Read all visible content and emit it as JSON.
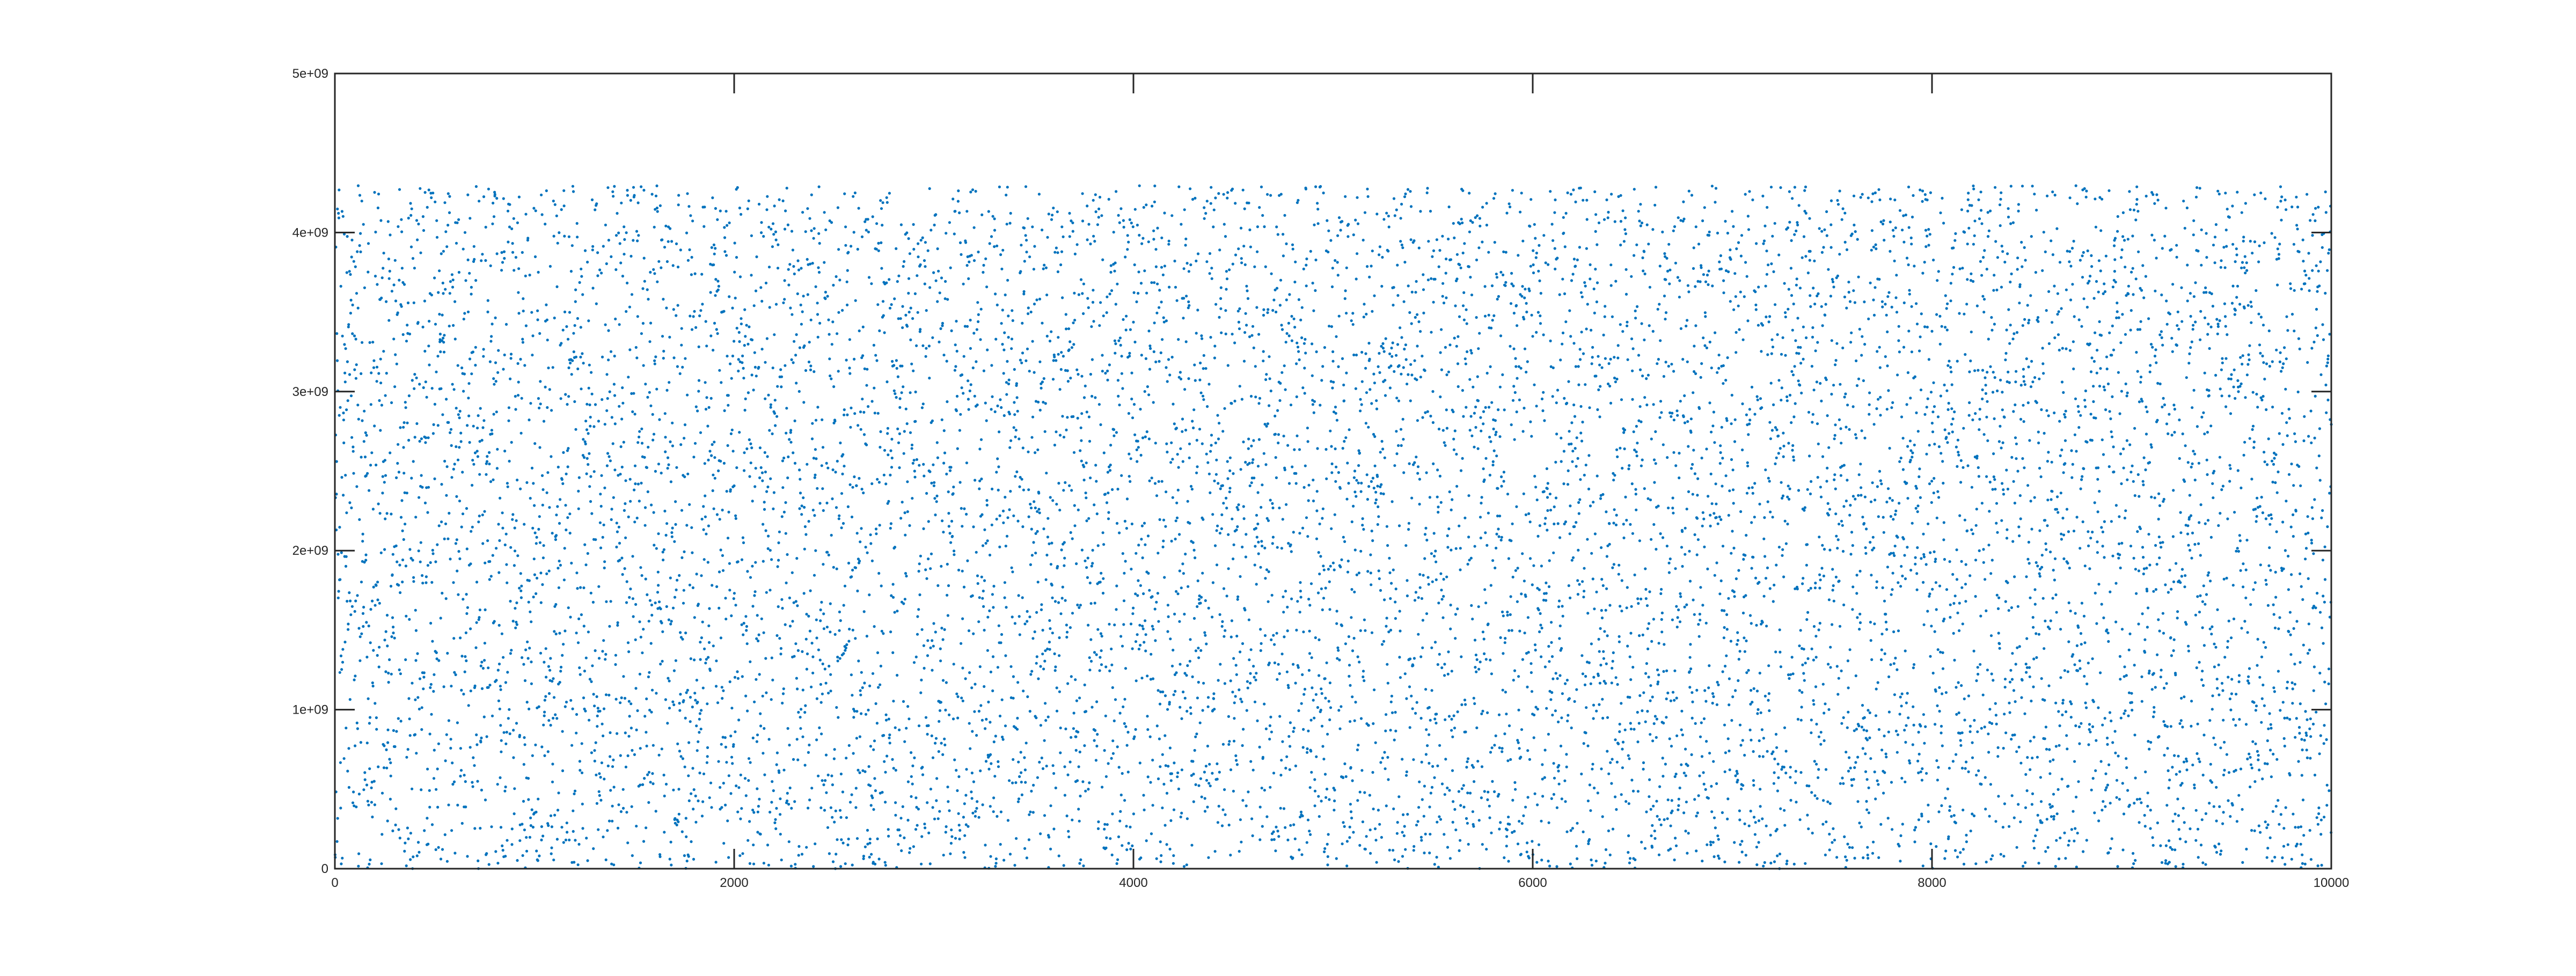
{
  "chart_data": {
    "type": "scatter",
    "title": "",
    "xlabel": "",
    "ylabel": "",
    "xlim": [
      0,
      10000
    ],
    "ylim": [
      0,
      5000000000
    ],
    "x_ticks": [
      0,
      2000,
      4000,
      6000,
      8000,
      10000
    ],
    "x_tick_labels": [
      "0",
      "2000",
      "4000",
      "6000",
      "8000",
      "10000"
    ],
    "y_ticks": [
      0,
      1000000000,
      2000000000,
      3000000000,
      4000000000,
      5000000000
    ],
    "y_tick_labels": [
      "0",
      "1e+09",
      "2e+09",
      "3e+09",
      "4e+09",
      "5e+09"
    ],
    "series": [
      {
        "x_range": [
          1,
          10000
        ],
        "y_distribution": "uniform",
        "y_range": [
          0,
          4294967295
        ],
        "marker": "dot",
        "color": "#0072BD"
      }
    ],
    "grid": false,
    "legend": "none",
    "colors": {
      "axes": "#262626",
      "points": "#0072BD",
      "background": "#ffffff"
    }
  }
}
